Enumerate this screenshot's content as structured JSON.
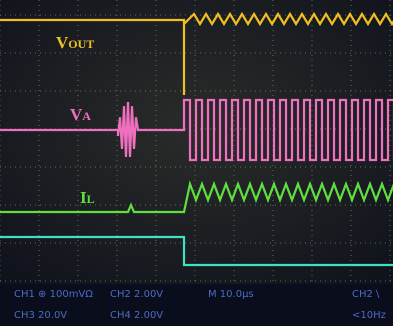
{
  "labels": {
    "vout": {
      "main": "V",
      "sub": "OUT"
    },
    "va": {
      "main": "V",
      "sub": "A"
    },
    "il": {
      "main": "I",
      "sub": "L"
    }
  },
  "status": {
    "row1": [
      "CH1 ⊕ 100mVΩ",
      "CH2  2.00V",
      "M 10.0µs",
      "CH2 \\"
    ],
    "row2": [
      "CH3  20.0V",
      "CH4  2.00V",
      "<10Hz"
    ]
  }
}
